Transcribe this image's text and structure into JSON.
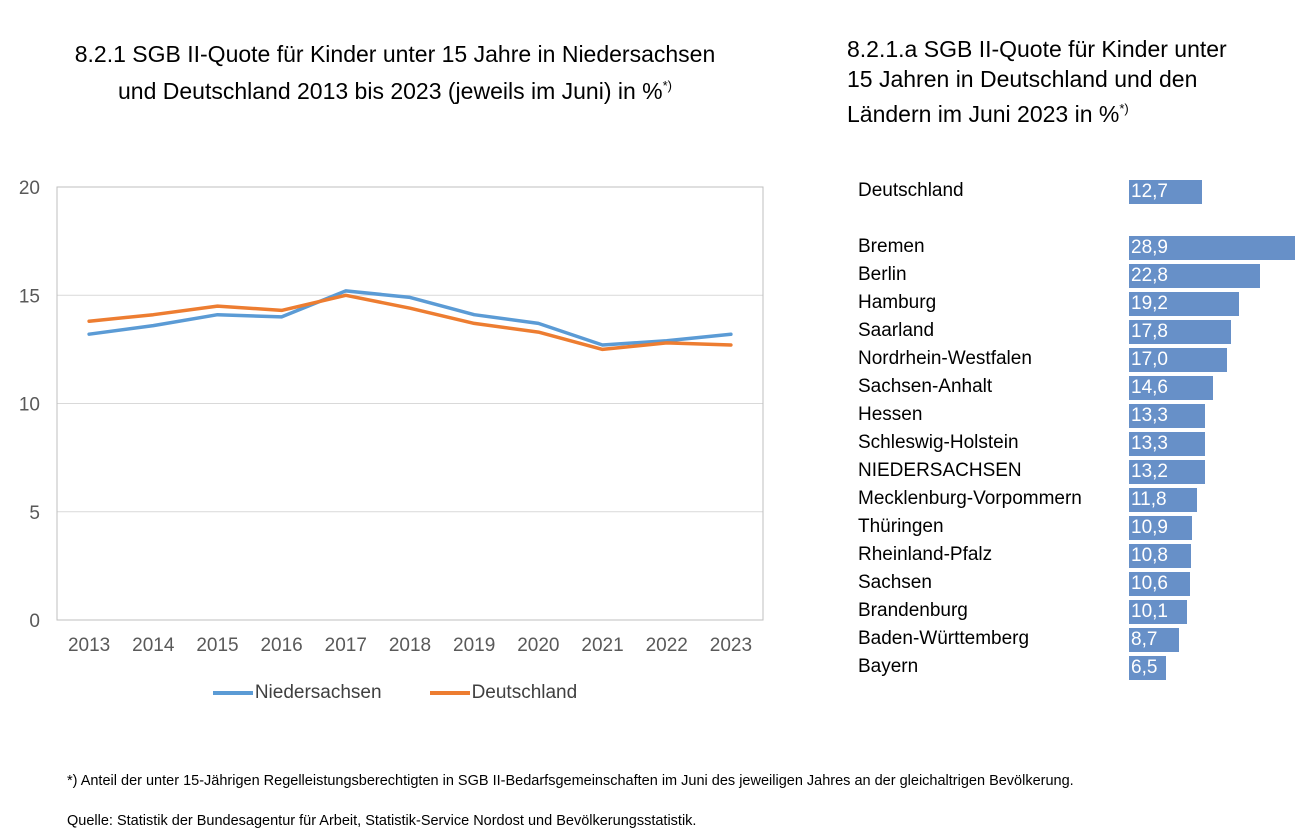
{
  "chart_data": [
    {
      "type": "line",
      "title": "8.2.1 SGB II-Quote für Kinder unter 15 Jahre in Niedersachsen und Deutschland 2013 bis 2023 (jeweils im Juni) in %",
      "title_line1": "8.2.1 SGB II-Quote für Kinder unter 15 Jahre in Niedersachsen",
      "title_line2": "und Deutschland 2013 bis 2023 (jeweils im Juni) in %",
      "footnote_mark": "*)",
      "x": [
        "2013",
        "2014",
        "2015",
        "2016",
        "2017",
        "2018",
        "2019",
        "2020",
        "2021",
        "2022",
        "2023"
      ],
      "series": [
        {
          "name": "Niedersachsen",
          "color": "#5b9bd5",
          "values": [
            13.2,
            13.6,
            14.1,
            14.0,
            15.2,
            14.9,
            14.1,
            13.7,
            12.7,
            12.9,
            13.2
          ]
        },
        {
          "name": "Deutschland",
          "color": "#ed7d31",
          "values": [
            13.8,
            14.1,
            14.5,
            14.3,
            15.0,
            14.4,
            13.7,
            13.3,
            12.5,
            12.8,
            12.7
          ]
        }
      ],
      "xlabel": "",
      "ylabel": "",
      "ylim": [
        0,
        20
      ],
      "yticks": [
        "0",
        "5",
        "10",
        "15",
        "20"
      ],
      "yticks_values": [
        0,
        5,
        10,
        15,
        20
      ],
      "grid": true,
      "legend_position": "bottom"
    },
    {
      "type": "bar",
      "orientation": "horizontal",
      "title": "8.2.1.a SGB II-Quote für Kinder unter 15 Jahren in Deutschland und den Ländern im Juni 2023 in %",
      "title_line1": "8.2.1.a SGB II-Quote für Kinder unter",
      "title_line2": "15 Jahren in Deutschland und den",
      "title_line3": "Ländern im Juni 2023 in %",
      "footnote_mark": "*)",
      "color": "#6790c8",
      "max_value": 28.9,
      "categories": [
        "Deutschland",
        "Bremen",
        "Berlin",
        "Hamburg",
        "Saarland",
        "Nordrhein-Westfalen",
        "Sachsen-Anhalt",
        "Hessen",
        "Schleswig-Holstein",
        "NIEDERSACHSEN",
        "Mecklenburg-Vorpommern",
        "Thüringen",
        "Rheinland-Pfalz",
        "Sachsen",
        "Brandenburg",
        "Baden-Württemberg",
        "Bayern"
      ],
      "values": [
        12.7,
        28.9,
        22.8,
        19.2,
        17.8,
        17.0,
        14.6,
        13.3,
        13.3,
        13.2,
        11.8,
        10.9,
        10.8,
        10.6,
        10.1,
        8.7,
        6.5
      ],
      "value_labels": [
        "12,7",
        "28,9",
        "22,8",
        "19,2",
        "17,8",
        "17,0",
        "14,6",
        "13,3",
        "13,3",
        "13,2",
        "11,8",
        "10,9",
        "10,8",
        "10,6",
        "10,1",
        "8,7",
        "6,5"
      ]
    }
  ],
  "footnotes": {
    "definition": "*) Anteil der unter 15-Jährigen Regelleistungsberechtigten in SGB II-Bedarfsgemeinschaften im Juni des jeweiligen Jahres an der gleichaltrigen Bevölkerung.",
    "source": "Quelle: Statistik der Bundesagentur für Arbeit, Statistik-Service Nordost und Bevölkerungsstatistik."
  }
}
